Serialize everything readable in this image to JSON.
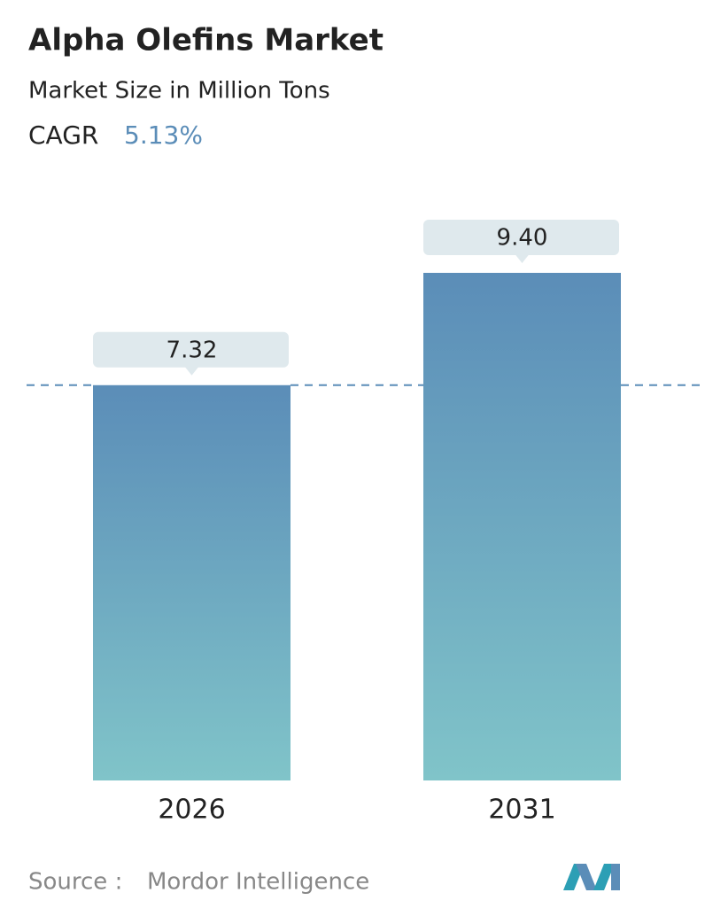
{
  "chart_data": {
    "type": "bar",
    "title": "Alpha Olefins Market",
    "subtitle": "Market Size in Million Tons",
    "cagr_label": "CAGR",
    "cagr": "5.13%",
    "categories": [
      "2026",
      "2031"
    ],
    "values": [
      7.32,
      9.4
    ],
    "value_labels": [
      "7.32",
      "9.40"
    ],
    "source_label": "Source :",
    "source": "Mordor Intelligence"
  }
}
